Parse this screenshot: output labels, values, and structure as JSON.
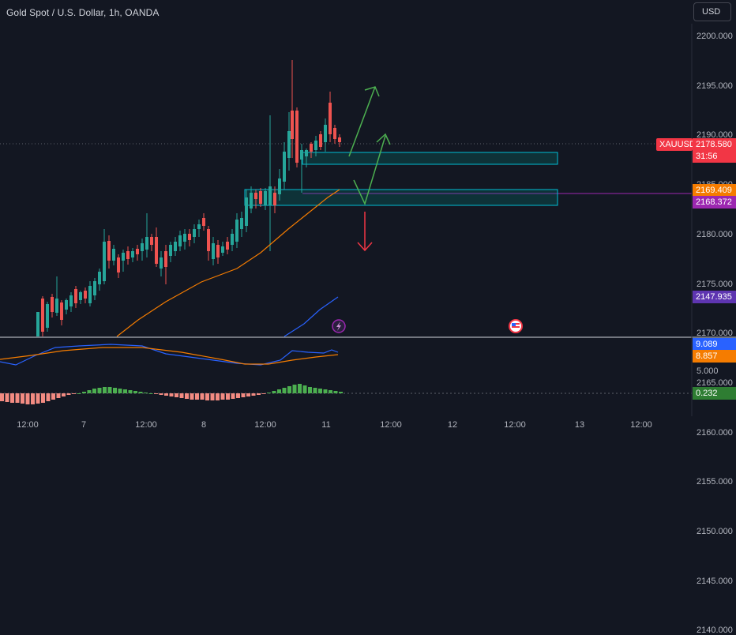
{
  "header": {
    "title": "Gold Spot / U.S. Dollar, 1h, OANDA",
    "currency_button": "USD"
  },
  "price_axis": {
    "ticks": [
      "2200.000",
      "2195.000",
      "2190.000",
      "2185.000",
      "2180.000",
      "2175.000",
      "2170.000",
      "2165.000",
      "2160.000",
      "2155.000",
      "2150.000",
      "2145.000",
      "2140.000"
    ]
  },
  "tags": {
    "symbol": "XAUUSD",
    "last_price": "2178.580",
    "countdown": "31:56",
    "ma_fast": "2169.409",
    "level_line": "2168.372",
    "ma_slow": "2147.935",
    "osc_blue": "9.089",
    "osc_orange": "8.857",
    "osc_tick": "5.000",
    "hist_value": "0.232"
  },
  "time_axis": {
    "labels": [
      "12:00",
      "7",
      "12:00",
      "8",
      "12:00",
      "11",
      "12:00",
      "12",
      "12:00",
      "13",
      "12:00"
    ]
  },
  "colors": {
    "background": "#131722",
    "bull": "#26a69a",
    "bear": "#ef5350",
    "ma_orange": "#f57c00",
    "ma_blue": "#2962ff",
    "zone_border": "#00bcd4",
    "level_line": "#9c27b0",
    "arrow_green": "#4caf50",
    "arrow_red": "#f23645"
  },
  "icons": [
    "lightning-event-icon",
    "us-flag-event-icon"
  ]
}
